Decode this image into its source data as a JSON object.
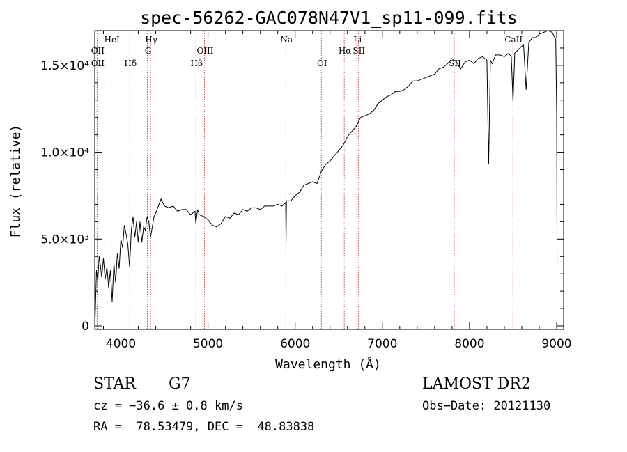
{
  "chart_data": {
    "type": "line",
    "title": "spec-56262-GAC078N47V1_sp11-099.fits",
    "xlabel": "Wavelength (Å)",
    "ylabel": "Flux (relative)",
    "xlim": [
      3700,
      9080
    ],
    "ylim": [
      -200,
      17000
    ],
    "x_ticks": [
      4000,
      5000,
      6000,
      7000,
      8000,
      9000
    ],
    "y_ticks": [
      {
        "value": 0,
        "label": "0"
      },
      {
        "value": 5000,
        "label": "5.0×10³"
      },
      {
        "value": 10000,
        "label": "1.0×10⁴"
      },
      {
        "value": 15000,
        "label": "1.5×10⁴"
      }
    ],
    "grid": false,
    "spectral_lines": [
      {
        "name": "OII",
        "wavelength": 3727,
        "row": 2
      },
      {
        "name": "OII",
        "wavelength": 3727,
        "row": 3
      },
      {
        "name": "HeI",
        "wavelength": 3889,
        "row": 1
      },
      {
        "name": "Hδ",
        "wavelength": 4102,
        "row": 3
      },
      {
        "name": "Hγ",
        "wavelength": 4340,
        "row": 1
      },
      {
        "name": "G",
        "wavelength": 4304,
        "row": 2
      },
      {
        "name": "Hβ",
        "wavelength": 4861,
        "row": 3
      },
      {
        "name": "OIII",
        "wavelength": 4959,
        "row": 2
      },
      {
        "name": "Na",
        "wavelength": 5893,
        "row": 1
      },
      {
        "name": "OI",
        "wavelength": 6300,
        "row": 3
      },
      {
        "name": "Hα",
        "wavelength": 6563,
        "row": 2
      },
      {
        "name": "Li",
        "wavelength": 6708,
        "row": 1
      },
      {
        "name": "SII",
        "wavelength": 6724,
        "row": 2
      },
      {
        "name": "SII",
        "wavelength": 7825,
        "row": 3
      },
      {
        "name": "CaII",
        "wavelength": 8498,
        "row": 1
      }
    ],
    "series": [
      {
        "x": [
          3705,
          3720,
          3735,
          3750,
          3765,
          3780,
          3800,
          3820,
          3840,
          3860,
          3880,
          3900,
          3920,
          3940,
          3960,
          3980,
          4000,
          4020,
          4040,
          4060,
          4080,
          4100,
          4120,
          4140,
          4160,
          4180,
          4200,
          4220,
          4240,
          4260,
          4280,
          4300,
          4320,
          4340,
          4360,
          4380,
          4400,
          4430,
          4460,
          4500,
          4550,
          4600,
          4650,
          4700,
          4750,
          4800,
          4850,
          4860,
          4880,
          4900,
          4950,
          5000,
          5050,
          5100,
          5150,
          5200,
          5250,
          5300,
          5350,
          5400,
          5450,
          5500,
          5550,
          5600,
          5650,
          5700,
          5750,
          5800,
          5850,
          5890,
          5895,
          5900,
          5950,
          6000,
          6050,
          6100,
          6150,
          6200,
          6250,
          6300,
          6350,
          6400,
          6450,
          6500,
          6550,
          6600,
          6650,
          6700,
          6750,
          6800,
          6850,
          6900,
          6950,
          7000,
          7050,
          7100,
          7150,
          7200,
          7250,
          7300,
          7350,
          7400,
          7450,
          7500,
          7550,
          7600,
          7650,
          7700,
          7750,
          7800,
          7850,
          7900,
          7950,
          8000,
          8050,
          8100,
          8150,
          8200,
          8220,
          8240,
          8260,
          8300,
          8350,
          8400,
          8450,
          8480,
          8500,
          8520,
          8540,
          8580,
          8620,
          8650,
          8680,
          8720,
          8760,
          8800,
          8850,
          8900,
          8950,
          8990,
          9000,
          9005
        ],
        "y": [
          500,
          3200,
          2600,
          4000,
          3500,
          2800,
          3900,
          2700,
          3400,
          2200,
          3200,
          1400,
          3600,
          2500,
          4200,
          3300,
          5000,
          4500,
          5800,
          5300,
          4700,
          3400,
          5500,
          6300,
          5100,
          6000,
          4800,
          6000,
          4800,
          5700,
          5500,
          6300,
          6000,
          5100,
          5700,
          6300,
          6500,
          6900,
          7300,
          6900,
          6800,
          6900,
          6600,
          6700,
          6700,
          6400,
          6600,
          5900,
          6700,
          6400,
          6300,
          6100,
          5800,
          5700,
          5900,
          6300,
          6200,
          6500,
          6400,
          6700,
          6600,
          6800,
          6800,
          6700,
          6900,
          6900,
          6900,
          7000,
          6900,
          7100,
          4800,
          7200,
          7200,
          7500,
          7700,
          8100,
          8200,
          8300,
          8200,
          8900,
          9300,
          9500,
          9800,
          10100,
          10400,
          10900,
          11200,
          11500,
          12000,
          12100,
          12200,
          12400,
          12800,
          13000,
          13200,
          13300,
          13500,
          13500,
          13600,
          13800,
          14100,
          14100,
          14200,
          14300,
          14400,
          14500,
          14800,
          14900,
          15100,
          15400,
          15200,
          14800,
          15200,
          15300,
          15100,
          15400,
          15500,
          15300,
          9300,
          15300,
          15100,
          15600,
          15600,
          15500,
          15700,
          15500,
          12900,
          15700,
          15800,
          16000,
          16200,
          13600,
          16300,
          16600,
          16600,
          16800,
          16900,
          17000,
          16900,
          16500,
          12300,
          3500
        ]
      }
    ]
  },
  "footer": {
    "object_class": "STAR",
    "subclass": "G7",
    "survey": "LAMOST DR2",
    "redshift": "cz = −36.6 ± 0.8 km/s",
    "obs_date": "Obs−Date: 20121130",
    "coords": "RA =  78.53479, DEC =  48.83838"
  },
  "colors": {
    "spectrum": "#000000",
    "line_markers": "#b22222",
    "axes": "#000000"
  }
}
